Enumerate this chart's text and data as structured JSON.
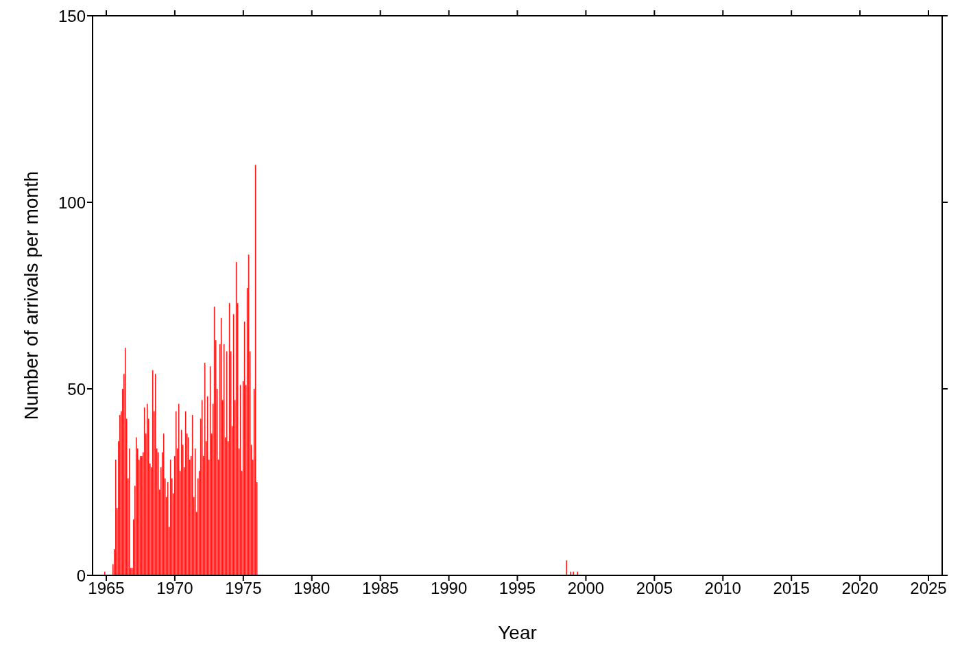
{
  "chart_data": {
    "type": "bar",
    "xlabel": "Year",
    "ylabel": "Number of arrivals per month",
    "x": [
      1964.9,
      1965.5,
      1965.6,
      1965.7,
      1965.8,
      1965.9,
      1966.0,
      1966.1,
      1966.2,
      1966.3,
      1966.4,
      1966.5,
      1966.6,
      1966.7,
      1966.8,
      1966.9,
      1967.0,
      1967.1,
      1967.2,
      1967.3,
      1967.4,
      1967.5,
      1967.6,
      1967.7,
      1967.8,
      1967.9,
      1968.0,
      1968.1,
      1968.2,
      1968.3,
      1968.4,
      1968.5,
      1968.6,
      1968.7,
      1968.8,
      1968.9,
      1969.0,
      1969.1,
      1969.2,
      1969.3,
      1969.4,
      1969.5,
      1969.6,
      1969.7,
      1969.8,
      1969.9,
      1970.0,
      1970.1,
      1970.2,
      1970.3,
      1970.4,
      1970.5,
      1970.6,
      1970.7,
      1970.8,
      1970.9,
      1971.0,
      1971.1,
      1971.2,
      1971.3,
      1971.4,
      1971.5,
      1971.6,
      1971.7,
      1971.8,
      1971.9,
      1972.0,
      1972.1,
      1972.2,
      1972.3,
      1972.4,
      1972.5,
      1972.6,
      1972.7,
      1972.8,
      1972.9,
      1973.0,
      1973.1,
      1973.2,
      1973.3,
      1973.4,
      1973.5,
      1973.6,
      1973.7,
      1973.8,
      1973.9,
      1974.0,
      1974.1,
      1974.2,
      1974.3,
      1974.4,
      1974.5,
      1974.6,
      1974.7,
      1974.8,
      1974.9,
      1975.0,
      1975.1,
      1975.2,
      1975.3,
      1975.4,
      1975.5,
      1975.6,
      1975.7,
      1975.8,
      1975.9,
      1976.0,
      1998.6,
      1998.9,
      1999.1,
      1999.4
    ],
    "series": [
      {
        "color": "#ff1a1a",
        "values": [
          1,
          3,
          7,
          31,
          18,
          36,
          43,
          44,
          50,
          54,
          61,
          42,
          26,
          34,
          2,
          2,
          15,
          24,
          37,
          34,
          31,
          32,
          32,
          33,
          45,
          38,
          46,
          42,
          30,
          29,
          55,
          44,
          54,
          34,
          33,
          23,
          29,
          33,
          38,
          26,
          21,
          25,
          13,
          31,
          26,
          22,
          32,
          44,
          34,
          46,
          28,
          39,
          35,
          29,
          44,
          38,
          37,
          31,
          32,
          43,
          21,
          34,
          17,
          26,
          28,
          42,
          47,
          32,
          57,
          36,
          48,
          31,
          56,
          38,
          46,
          72,
          63,
          50,
          31,
          62,
          69,
          47,
          62,
          37,
          60,
          36,
          73,
          60,
          40,
          70,
          47,
          84,
          73,
          34,
          51,
          28,
          52,
          68,
          51,
          77,
          86,
          60,
          35,
          31,
          50,
          110,
          25,
          4,
          1,
          1,
          1
        ]
      }
    ],
    "xlim": [
      1964,
      2026
    ],
    "xticks": [
      1965,
      1970,
      1975,
      1980,
      1985,
      1990,
      1995,
      2000,
      2005,
      2010,
      2015,
      2020,
      2025
    ],
    "ylim": [
      0,
      150
    ],
    "yticks": [
      0,
      50,
      100,
      150
    ],
    "grid": false,
    "legend": false
  }
}
